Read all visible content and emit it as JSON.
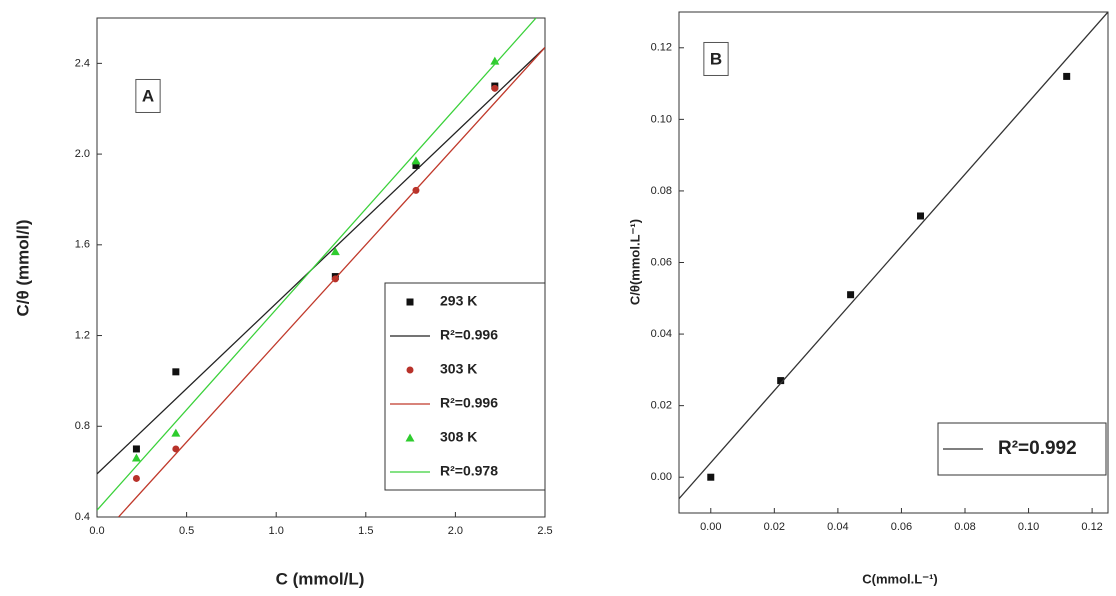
{
  "chart_data": [
    {
      "type": "scatter",
      "annotation": "A",
      "xlabel": "C (mmol/L)",
      "ylabel": "C/θ (mmol/l)",
      "xlim": [
        0,
        2.5
      ],
      "xticks": [
        {
          "value": 0,
          "label": "0.0"
        },
        0.5,
        {
          "value": 1,
          "label": "1.0"
        },
        1.5,
        {
          "value": 2,
          "label": "2.0"
        },
        2.5
      ],
      "ylim": [
        0.4,
        2.6
      ],
      "yticks": [
        0.4,
        0.8,
        1.2,
        1.6,
        {
          "value": 2,
          "label": "2.0"
        },
        2.4
      ],
      "series": [
        {
          "name": "293 K",
          "type": "scatter",
          "marker": "square",
          "color": "#111111",
          "x": [
            0.22,
            0.44,
            1.33,
            1.78,
            2.22
          ],
          "values": [
            0.7,
            1.04,
            1.46,
            1.95,
            2.3
          ]
        },
        {
          "name": "R²=0.996",
          "type": "line",
          "color": "#222222",
          "x": [
            0,
            2.5
          ],
          "values": [
            0.59,
            2.47
          ]
        },
        {
          "name": "303 K",
          "type": "scatter",
          "marker": "circle",
          "color": "#b8322a",
          "x": [
            0.22,
            0.44,
            1.33,
            1.78,
            2.22
          ],
          "values": [
            0.57,
            0.7,
            1.45,
            1.84,
            2.29
          ]
        },
        {
          "name": "R²=0.996",
          "type": "line",
          "color": "#c0392b",
          "x": [
            0.12,
            2.5
          ],
          "values": [
            0.4,
            2.47
          ]
        },
        {
          "name": "308 K",
          "type": "scatter",
          "marker": "triangle",
          "color": "#2ecc2e",
          "x": [
            0.22,
            0.44,
            1.33,
            1.78,
            2.22
          ],
          "values": [
            0.66,
            0.77,
            1.57,
            1.97,
            2.41
          ]
        },
        {
          "name": "R²=0.978",
          "type": "line",
          "color": "#3ad13a",
          "x": [
            0,
            2.45
          ],
          "values": [
            0.43,
            2.6
          ]
        }
      ]
    },
    {
      "type": "scatter",
      "annotation": "B",
      "xlabel": "C(mmol.L⁻¹)",
      "ylabel": "C/θ(mmol.L⁻¹)",
      "xlim": [
        -0.01,
        0.125
      ],
      "xticks": [
        {
          "value": 0,
          "label": "0.00"
        },
        {
          "value": 0.02,
          "label": "0.02"
        },
        {
          "value": 0.04,
          "label": "0.04"
        },
        {
          "value": 0.06,
          "label": "0.06"
        },
        {
          "value": 0.08,
          "label": "0.08"
        },
        {
          "value": 0.1,
          "label": "0.10"
        },
        {
          "value": 0.12,
          "label": "0.12"
        }
      ],
      "ylim": [
        -0.01,
        0.13
      ],
      "yticks": [
        {
          "value": 0,
          "label": "0.00"
        },
        {
          "value": 0.02,
          "label": "0.02"
        },
        {
          "value": 0.04,
          "label": "0.04"
        },
        {
          "value": 0.06,
          "label": "0.06"
        },
        {
          "value": 0.08,
          "label": "0.08"
        },
        {
          "value": 0.1,
          "label": "0.10"
        },
        0.12
      ],
      "series": [
        {
          "type": "scatter",
          "marker": "square",
          "color": "#111111",
          "x": [
            0,
            0.022,
            0.044,
            0.066,
            0.112
          ],
          "values": [
            0.0,
            0.027,
            0.051,
            0.073,
            0.112
          ]
        },
        {
          "name": "R²=0.992",
          "type": "line",
          "color": "#333333",
          "x": [
            -0.01,
            0.125
          ],
          "values": [
            -0.006,
            0.13
          ]
        }
      ]
    }
  ]
}
